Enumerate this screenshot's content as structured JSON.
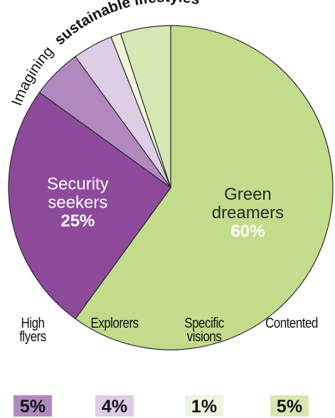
{
  "chart_data": {
    "type": "pie",
    "title_plain": "Imagining",
    "title_bold": "sustainable lifestyles",
    "slices": [
      {
        "label": "Green dreamers",
        "label_lines": [
          "Green",
          "dreamers"
        ],
        "value": 60,
        "value_label": "60%",
        "color": "#c3dc8c"
      },
      {
        "label": "Security seekers",
        "label_lines": [
          "Security",
          "seekers"
        ],
        "value": 25,
        "value_label": "25%",
        "color": "#8d4a9b"
      },
      {
        "label": "High flyers",
        "value": 5,
        "value_label": "5%",
        "color": "#b189bf"
      },
      {
        "label": "Explorers",
        "value": 4,
        "value_label": "4%",
        "color": "#ddcde5"
      },
      {
        "label": "Specific visions",
        "value": 1,
        "value_label": "1%",
        "color": "#eef5dd"
      },
      {
        "label": "Contented",
        "value": 5,
        "value_label": "5%",
        "color": "#d7e7b4"
      }
    ],
    "start_angle_deg": 0,
    "direction": "clockwise",
    "legend": [
      {
        "name": "High flyers",
        "value_label": "5%",
        "color": "#b189bf"
      },
      {
        "name": "Explorers",
        "value_label": "4%",
        "color": "#ddcde5"
      },
      {
        "name": "Specific visions",
        "value_label": "1%",
        "color": "#eef5dd"
      },
      {
        "name": "Contented",
        "value_label": "5%",
        "color": "#d7e7b4"
      }
    ]
  }
}
